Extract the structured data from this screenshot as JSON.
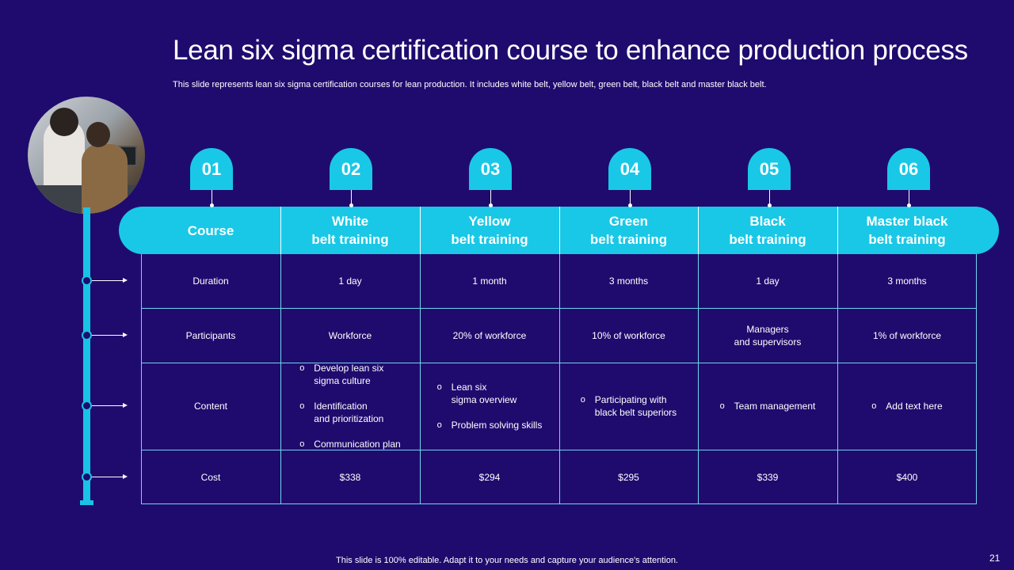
{
  "title": "Lean six sigma certification course to enhance production process",
  "subtitle": "This slide represents lean six sigma certification courses for lean production. It includes white belt, yellow belt, green belt, black belt and master black belt.",
  "numbers": [
    "01",
    "02",
    "03",
    "04",
    "05",
    "06"
  ],
  "headers": [
    "Course",
    "White\nbelt training",
    "Yellow\nbelt training",
    "Green\nbelt training",
    "Black\nbelt training",
    "Master black\nbelt training"
  ],
  "rows": {
    "duration": {
      "label": "Duration",
      "values": [
        "1 day",
        "1 month",
        "3 months",
        "1 day",
        "3 months"
      ]
    },
    "participants": {
      "label": "Participants",
      "values": [
        "Workforce",
        "20% of workforce",
        "10% of workforce",
        "Managers\nand supervisors",
        "1% of workforce"
      ]
    },
    "content": {
      "label": "Content",
      "white": [
        "Develop lean six\nsigma culture",
        "Identification\nand prioritization",
        "Communication plan"
      ],
      "yellow": [
        "Lean six\nsigma overview",
        "Problem solving skills"
      ],
      "green": [
        "Participating with\nblack belt superiors"
      ],
      "black": [
        "Team management"
      ],
      "master": [
        "Add text here"
      ]
    },
    "cost": {
      "label": "Cost",
      "values": [
        "$338",
        "$294",
        "$295",
        "$339",
        "$400"
      ]
    }
  },
  "footer": "This slide is 100% editable. Adapt it to your needs and capture your audience's attention.",
  "page_number": "21",
  "colors": {
    "background": "#1f0b6e",
    "accent": "#19c8e6",
    "grid": "#6fd6ee"
  }
}
